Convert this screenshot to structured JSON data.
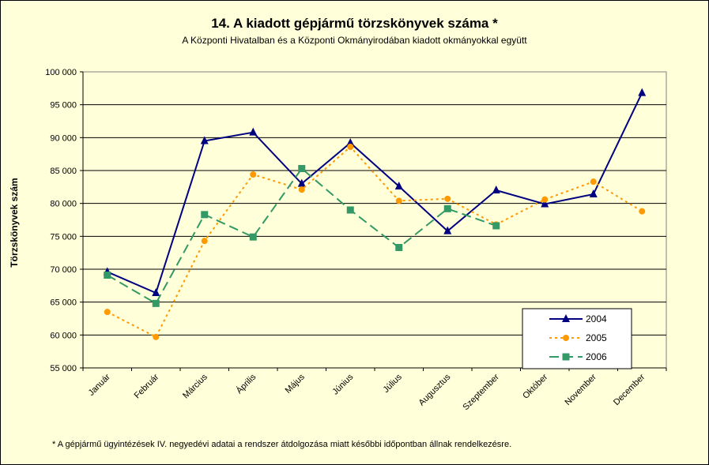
{
  "chart_data": {
    "type": "line",
    "title": "14. A  kiadott gépjármű  törzskönyvek száma *",
    "subtitle": "A Központi Hivatalban és a Központi Okmányirodában kiadott okmányokkal együtt",
    "ylabel": "Törzskönyvek szám",
    "xlabel": "",
    "ylim": [
      55000,
      100000
    ],
    "yticks": [
      "55 000",
      "60 000",
      "65 000",
      "70 000",
      "75 000",
      "80 000",
      "85 000",
      "90 000",
      "95 000",
      "100 000"
    ],
    "categories": [
      "Január",
      "Február",
      "Március",
      "Április",
      "Május",
      "Június",
      "Július",
      "Augusztus",
      "Szeptember",
      "Október",
      "November",
      "December"
    ],
    "series": [
      {
        "name": "2004",
        "color": "#000080",
        "marker": "triangle",
        "dash": "solid",
        "values": [
          69600,
          66400,
          89500,
          90800,
          83000,
          89200,
          82600,
          75800,
          82000,
          79900,
          81400,
          96800
        ]
      },
      {
        "name": "2005",
        "color": "#FF9900",
        "marker": "circle",
        "dash": "dotted",
        "values": [
          63500,
          59700,
          74300,
          84400,
          82100,
          88600,
          80400,
          80700,
          76800,
          80600,
          83300,
          78800
        ]
      },
      {
        "name": "2006",
        "color": "#339966",
        "marker": "square",
        "dash": "dashed",
        "values": [
          69100,
          64800,
          78300,
          74900,
          85300,
          79000,
          73300,
          79200,
          76600,
          null,
          null,
          null
        ]
      }
    ],
    "legend_position": "bottom-right",
    "grid": true,
    "plot_background": "#FFFFD9"
  },
  "footnote": "* A gépjármű ügyintézések IV. negyedévi adatai a rendszer átdolgozása miatt későbbi időpontban állnak rendelkezésre."
}
